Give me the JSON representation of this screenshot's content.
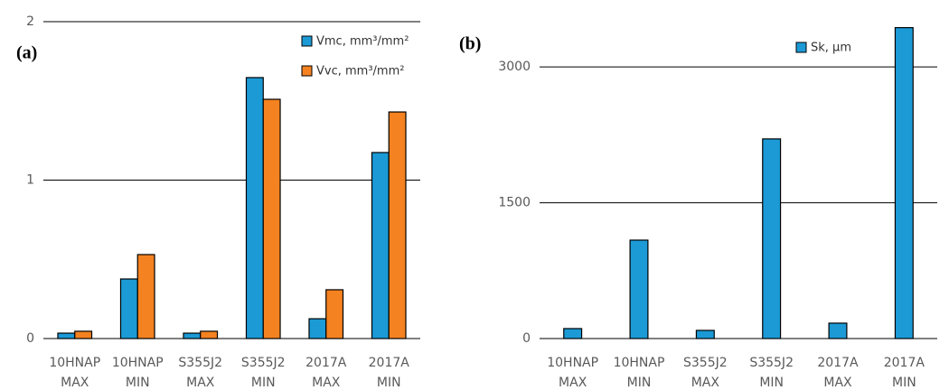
{
  "chart_data": [
    {
      "type": "bar",
      "label": "(a)",
      "categories": [
        "10HNAP MAX",
        "10HNAP MIN",
        "S355J2 MAX",
        "S355J2 MIN",
        "2017A MAX",
        "2017A MIN"
      ],
      "series": [
        {
          "name": "Vmc, mm³/mm²",
          "color": "#1b9ad6",
          "values": [
            0.034,
            0.376,
            0.034,
            1.647,
            0.125,
            1.174
          ]
        },
        {
          "name": "Vvc, mm³/mm²",
          "color": "#f58220",
          "values": [
            0.046,
            0.53,
            0.046,
            1.51,
            0.308,
            1.43
          ]
        }
      ],
      "ylim": [
        0,
        2
      ],
      "yticks": [
        0,
        1,
        2
      ],
      "grid": true,
      "legend": "top-right"
    },
    {
      "type": "bar",
      "label": "(b)",
      "categories": [
        "10HNAP MAX",
        "10HNAP MIN",
        "S355J2 MAX",
        "S355J2 MIN",
        "2017A MAX",
        "2017A MIN"
      ],
      "series": [
        {
          "name": "Sk, µm",
          "color": "#1b9ad6",
          "values": [
            110,
            1087,
            90,
            2205,
            170,
            3434
          ]
        }
      ],
      "ylim": [
        0,
        3500
      ],
      "yticks": [
        0,
        1500,
        3000
      ],
      "grid": true,
      "legend": "top-right"
    }
  ]
}
